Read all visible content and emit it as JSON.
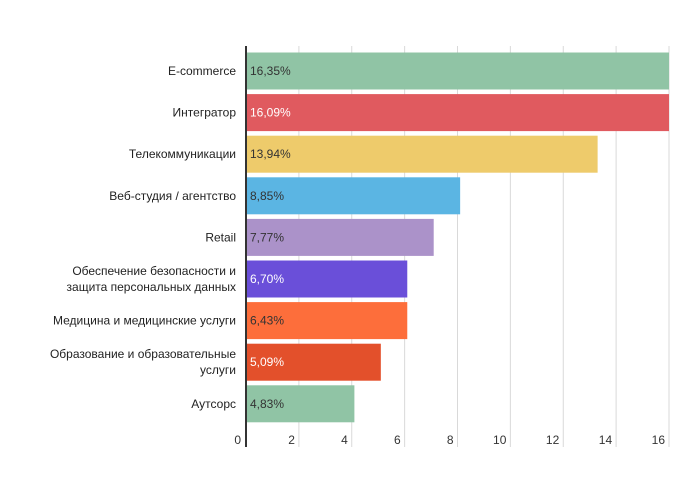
{
  "chart_data": {
    "type": "bar",
    "orientation": "horizontal",
    "categories": [
      [
        "E-commerce"
      ],
      [
        "Интегратор"
      ],
      [
        "Телекоммуникации"
      ],
      [
        "Веб-студия / агентство"
      ],
      [
        "Retail"
      ],
      [
        "Обеспечение безопасности и",
        "защита персональных данных"
      ],
      [
        "Медицина и медицинские услуги"
      ],
      [
        "Образование и образовательные",
        "услуги"
      ],
      [
        "Аутсорс"
      ]
    ],
    "values": [
      16.35,
      16.09,
      13.94,
      8.85,
      7.77,
      6.7,
      6.43,
      5.09,
      4.83
    ],
    "bar_lengths": [
      16,
      16,
      13.3,
      8.1,
      7.1,
      6.1,
      6.1,
      5.1,
      4.1
    ],
    "data_labels": [
      "16,35%",
      "16,09%",
      "13,94%",
      "8,85%",
      "7,77%",
      "6,70%",
      "6,43%",
      "5,09%",
      "4,83%"
    ],
    "colors": [
      "#90c4a5",
      "#e05a5f",
      "#eecb6b",
      "#5bb5e3",
      "#ab92c9",
      "#6a4fd9",
      "#fd6e3b",
      "#e3502b",
      "#90c4a5"
    ],
    "label_light": [
      false,
      true,
      false,
      false,
      false,
      true,
      false,
      true,
      false
    ],
    "xlim": [
      0,
      16
    ],
    "xticks": [
      "0",
      "2",
      "4",
      "6",
      "8",
      "10",
      "12",
      "14",
      "16"
    ],
    "xtick_values": [
      0,
      2,
      4,
      6,
      8,
      10,
      12,
      14,
      16
    ],
    "grid": true,
    "title": "",
    "xlabel": "",
    "ylabel": ""
  }
}
